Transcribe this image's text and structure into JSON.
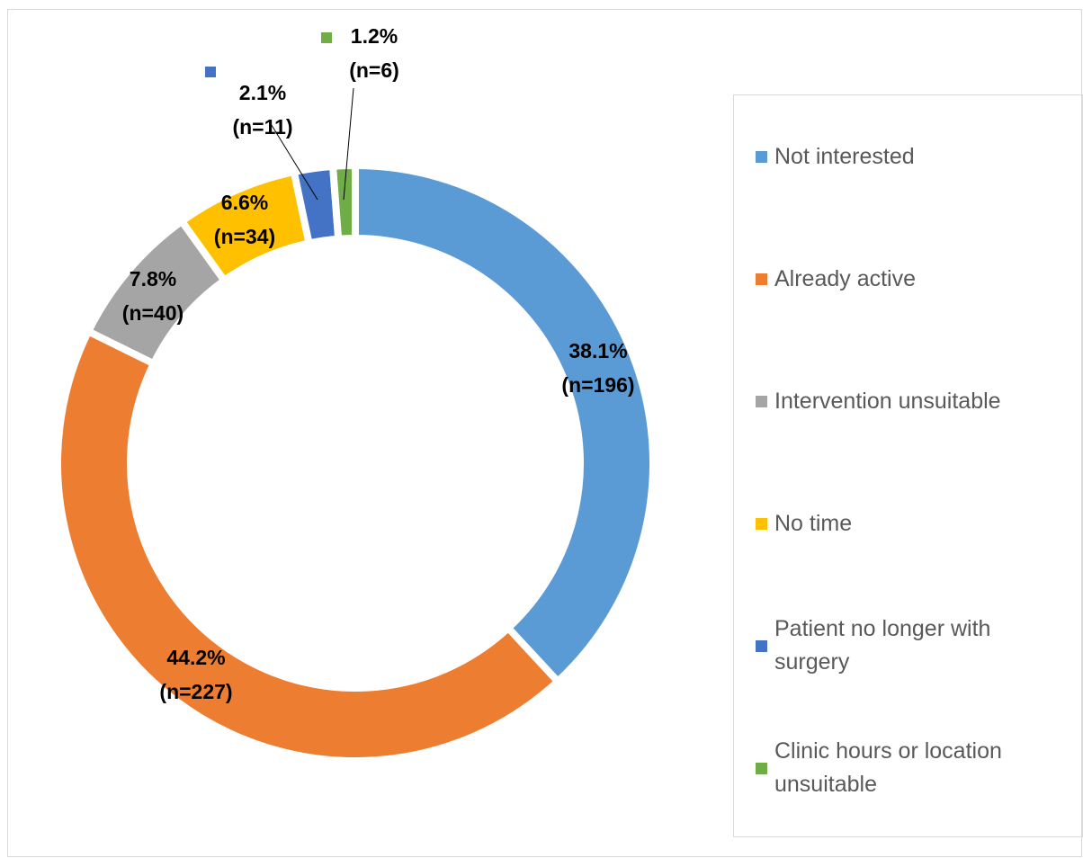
{
  "chart_data": {
    "type": "pie",
    "categories": [
      "Not interested",
      "Already active",
      "Intervention unsuitable",
      "No time",
      "Patient no longer with surgery",
      "Clinic hours or location unsuitable"
    ],
    "values": [
      38.1,
      44.2,
      7.8,
      6.6,
      2.1,
      1.2
    ],
    "value_labels": [
      "38.1%",
      "44.2%",
      "7.8%",
      "6.6%",
      "2.1%",
      "1.2%"
    ],
    "count_labels": [
      "(n=196)",
      "(n=227)",
      "(n=40)",
      "(n=34)",
      "(n=11)",
      "(n=6)"
    ],
    "colors": [
      "#5b9bd5",
      "#ed7d31",
      "#a5a5a5",
      "#ffc000",
      "#4472c4",
      "#70ad47"
    ],
    "donut": true,
    "legend": "right"
  }
}
